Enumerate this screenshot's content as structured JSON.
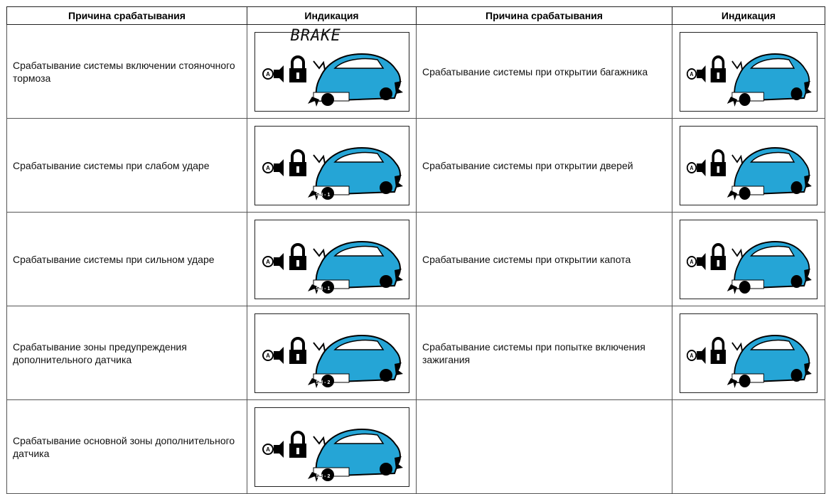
{
  "table": {
    "header": [
      "Причина срабатывания",
      "Индикация",
      "Причина срабатывания",
      "Индикация"
    ],
    "rows": [
      {
        "left": {
          "cause": "Срабатывание системы включении стояночного тормоза",
          "display": "BRAKE"
        },
        "right": {
          "cause": "Срабатывание системы при открытии багажника"
        }
      },
      {
        "left": {
          "cause": "Срабатывание системы при слабом ударе",
          "display": "SH - 1"
        },
        "right": {
          "cause": "Срабатывание системы при открытии дверей"
        }
      },
      {
        "left": {
          "cause": "Срабатывание системы при сильном ударе",
          "display": "SH - 1"
        },
        "right": {
          "cause": "Срабатывание системы при открытии капота"
        }
      },
      {
        "left": {
          "cause": "Срабатывание зоны предупреждения дополнительного датчика",
          "display": "SH - 2"
        },
        "right": {
          "cause": "Срабатывание системы при попытке включения зажигания"
        }
      },
      {
        "left": {
          "cause": "Срабатывание основной зоны дополнительного датчика",
          "display": "SH - 2"
        }
      }
    ]
  }
}
